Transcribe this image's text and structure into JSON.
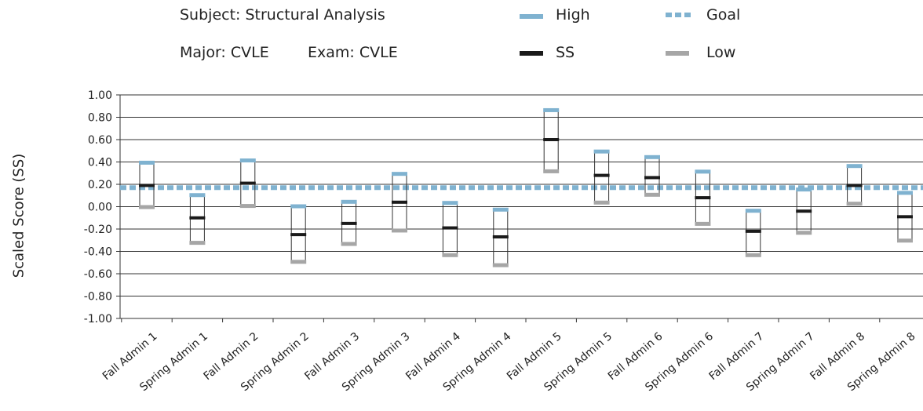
{
  "header": {
    "subject": "Subject: Structural Analysis",
    "major": "Major: CVLE",
    "exam": "Exam: CVLE"
  },
  "legend": [
    {
      "key": "high",
      "label": "High",
      "color": "#7fb2d0",
      "style": "solid"
    },
    {
      "key": "goal",
      "label": "Goal",
      "color": "#7fb2d0",
      "style": "dashed"
    },
    {
      "key": "ss",
      "label": "SS",
      "color": "#1a1a1a",
      "style": "solid"
    },
    {
      "key": "low",
      "label": "Low",
      "color": "#a6a6a6",
      "style": "solid"
    }
  ],
  "chart_data": {
    "type": "range",
    "ylabel": "Scaled Score (SS)",
    "ylim": [
      -1.0,
      1.0
    ],
    "yticks": [
      "1.00",
      "0.80",
      "0.60",
      "0.40",
      "0.20",
      "0.00",
      "-0.20",
      "-0.40",
      "-0.60",
      "-0.80",
      "-1.00"
    ],
    "ytick_values": [
      1.0,
      0.8,
      0.6,
      0.4,
      0.2,
      0.0,
      -0.2,
      -0.4,
      -0.6,
      -0.8,
      -1.0
    ],
    "grid": true,
    "goal": 0.17,
    "categories": [
      "Fall Admin 1",
      "Spring Admin 1",
      "Fall Admin 2",
      "Spring Admin 2",
      "Fall Admin 3",
      "Spring Admin 3",
      "Fall Admin 4",
      "Spring Admin 4",
      "Fall Admin 5",
      "Spring Admin 5",
      "Fall Admin 6",
      "Spring Admin 6",
      "Fall Admin 7",
      "Spring Admin 7",
      "Fall Admin 8",
      "Spring Admin 8"
    ],
    "series": [
      {
        "name": "High",
        "values": [
          0.39,
          0.1,
          0.41,
          0.0,
          0.04,
          0.29,
          0.03,
          -0.03,
          0.86,
          0.49,
          0.44,
          0.31,
          -0.04,
          0.15,
          0.36,
          0.12
        ]
      },
      {
        "name": "SS",
        "values": [
          0.19,
          -0.1,
          0.21,
          -0.25,
          -0.15,
          0.04,
          -0.19,
          -0.27,
          0.6,
          0.28,
          0.26,
          0.08,
          -0.22,
          -0.04,
          0.19,
          -0.09
        ]
      },
      {
        "name": "Low",
        "values": [
          0.0,
          -0.32,
          0.01,
          -0.49,
          -0.33,
          -0.21,
          -0.43,
          -0.52,
          0.32,
          0.04,
          0.11,
          -0.15,
          -0.43,
          -0.23,
          0.03,
          -0.3
        ]
      }
    ]
  }
}
